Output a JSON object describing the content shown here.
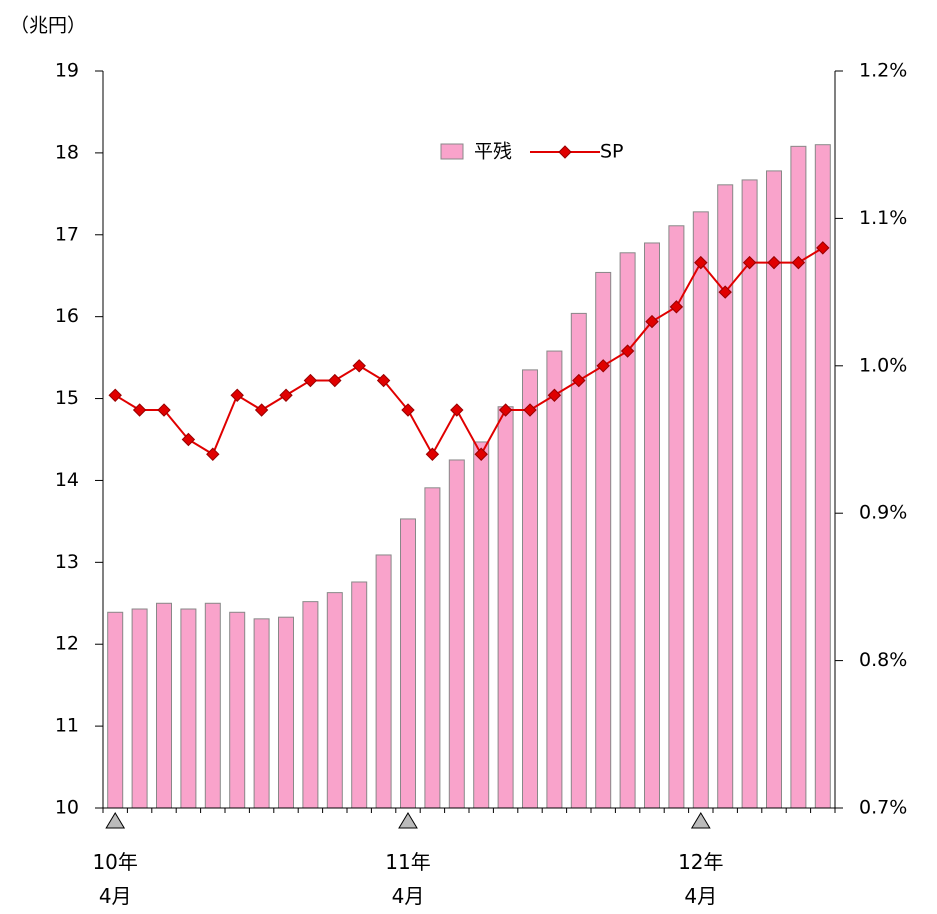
{
  "chart_data": {
    "type": "bar_line",
    "y_label": "（兆円）",
    "categories": [
      "10年\n4月",
      null,
      null,
      null,
      null,
      null,
      null,
      null,
      null,
      null,
      null,
      null,
      "11年\n4月",
      null,
      null,
      null,
      null,
      null,
      null,
      null,
      null,
      null,
      null,
      null,
      "12年\n4月",
      null,
      null,
      null,
      null,
      null
    ],
    "series": [
      {
        "name": "平残",
        "type": "bar",
        "color": "#f9a3cb",
        "axis": "y",
        "values": [
          12.39,
          12.43,
          12.5,
          12.43,
          12.5,
          12.39,
          12.31,
          12.33,
          12.52,
          12.63,
          12.76,
          13.09,
          13.53,
          13.91,
          14.25,
          14.47,
          14.9,
          15.35,
          15.58,
          16.04,
          16.54,
          16.78,
          16.9,
          17.11,
          17.28,
          17.61,
          17.67,
          17.78,
          18.08,
          18.1
        ]
      },
      {
        "name": "SP",
        "type": "line",
        "color": "#e00000",
        "axis": "y2",
        "values": [
          0.98,
          0.97,
          0.97,
          0.95,
          0.94,
          0.98,
          0.97,
          0.98,
          0.99,
          0.99,
          1.0,
          0.99,
          0.97,
          0.94,
          0.97,
          0.94,
          0.97,
          0.97,
          0.98,
          0.99,
          1.0,
          1.01,
          1.03,
          1.04,
          1.07,
          1.05,
          1.07,
          1.07,
          1.07,
          1.08
        ]
      }
    ],
    "ylim": [
      10,
      19
    ],
    "yticks": [
      10,
      11,
      12,
      13,
      14,
      15,
      16,
      17,
      18,
      19
    ],
    "y2lim": [
      0.7,
      1.2
    ],
    "y2ticks": [
      {
        "value": 0.7,
        "label": "0.7%"
      },
      {
        "value": 0.8,
        "label": "0.8%"
      },
      {
        "value": 0.9,
        "label": "0.9%"
      },
      {
        "value": 1.0,
        "label": "1.0%"
      },
      {
        "value": 1.1,
        "label": "1.1%"
      },
      {
        "value": 1.2,
        "label": "1.2%"
      }
    ],
    "legend": "top-center"
  }
}
